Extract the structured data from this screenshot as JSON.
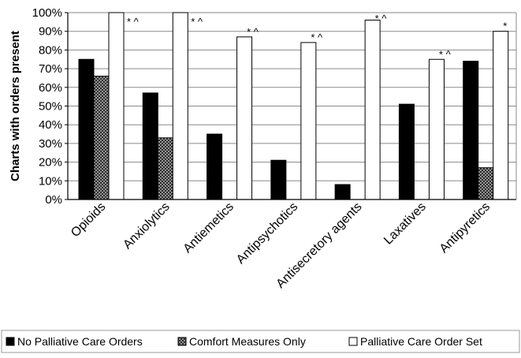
{
  "chart_data": {
    "type": "bar",
    "ylabel": "Charts with orders present",
    "xlabel": "",
    "ylim": [
      0,
      100
    ],
    "yticks": [
      0,
      10,
      20,
      30,
      40,
      50,
      60,
      70,
      80,
      90,
      100
    ],
    "ytick_labels": [
      "0%",
      "10%",
      "20%",
      "30%",
      "40%",
      "50%",
      "60%",
      "70%",
      "80%",
      "90%",
      "100%"
    ],
    "grid": true,
    "legend_position": "bottom",
    "categories": [
      "Opioids",
      "Anxiolytics",
      "Antiemetics",
      "Antipsychotics",
      "Antisecretory agents",
      "Laxatives",
      "Antipyretics"
    ],
    "series": [
      {
        "name": "No Palliative Care Orders",
        "fill": "solid-black",
        "values": [
          75,
          57,
          35,
          21,
          8,
          51,
          74
        ]
      },
      {
        "name": "Comfort Measures Only",
        "fill": "crosshatch-gray",
        "values": [
          66,
          33,
          0,
          0,
          0,
          0,
          17
        ]
      },
      {
        "name": "Palliative Care Order Set",
        "fill": "white",
        "values": [
          100,
          100,
          87,
          84,
          96,
          75,
          90
        ]
      }
    ],
    "annotations": [
      "* ^",
      "* ^",
      "* ^",
      "* ^",
      "* ^",
      "* ^",
      "*"
    ]
  },
  "colors": {
    "solid": "#000000",
    "hatch_fg": "#222222",
    "hatch_bg": "#bdbdbd",
    "open": "#ffffff",
    "grid": "#8a8a8a",
    "text": "#000000"
  }
}
